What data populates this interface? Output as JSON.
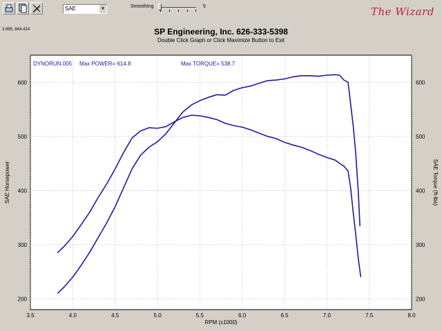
{
  "toolbar": {
    "buttons": [
      "print-icon",
      "copy-icon",
      "tools-icon"
    ],
    "combo_value": "SAE",
    "smoothing_label": "Smoothing",
    "smoothing_value": "5"
  },
  "logo_text": "The Wizard",
  "cursor_readout": "3.965, 644.424",
  "header": {
    "title": "SP Engineering, Inc. 626-333-5398",
    "subtitle": "Double Click Graph or Click Maximize Button to Exit"
  },
  "chart_data": {
    "type": "line",
    "title": "SP Engineering, Inc. 626-333-5398",
    "run_label": "DYNORUN.005",
    "max_power_label": "Max POWER= 614.8",
    "max_torque_label": "Max TORQUE= 538.7",
    "xlabel": "RPM (x1000)",
    "ylabel": "SAE Horsepower",
    "y2label": "SAE Torque (ft-lbs)",
    "xlim": [
      3.5,
      8.0
    ],
    "ylim": [
      180,
      650
    ],
    "x_ticks": [
      "3.5",
      "4.0",
      "4.5",
      "5.0",
      "5.5",
      "6.0",
      "6.5",
      "7.0",
      "7.5",
      "8.0"
    ],
    "y_ticks": [
      "200",
      "300",
      "400",
      "500",
      "600"
    ],
    "y2_ticks": [
      "200",
      "300",
      "400",
      "500",
      "600"
    ],
    "grid": true,
    "color": "#1a1aa0",
    "series": [
      {
        "x": [
          3.82,
          3.9,
          4.0,
          4.1,
          4.2,
          4.3,
          4.4,
          4.5,
          4.6,
          4.7,
          4.8,
          4.9,
          5.0,
          5.1,
          5.2,
          5.3,
          5.4,
          5.5,
          5.6,
          5.7,
          5.8,
          5.9,
          6.0,
          6.1,
          6.2,
          6.3,
          6.4,
          6.5,
          6.6,
          6.7,
          6.8,
          6.9,
          7.0,
          7.1,
          7.15,
          7.2,
          7.25,
          7.28,
          7.31,
          7.34,
          7.37,
          7.39
        ],
        "values": [
          210,
          222,
          240,
          262,
          286,
          313,
          340,
          370,
          405,
          440,
          465,
          480,
          490,
          505,
          525,
          545,
          558,
          566,
          572,
          577,
          576,
          585,
          590,
          593,
          598,
          603,
          604,
          606,
          610,
          612,
          612,
          611,
          613,
          614,
          613,
          604,
          600,
          560,
          520,
          470,
          400,
          334
        ]
      },
      {
        "x": [
          3.82,
          3.9,
          4.0,
          4.1,
          4.2,
          4.3,
          4.4,
          4.5,
          4.6,
          4.7,
          4.8,
          4.9,
          5.0,
          5.1,
          5.2,
          5.3,
          5.4,
          5.5,
          5.6,
          5.7,
          5.8,
          5.9,
          6.0,
          6.1,
          6.2,
          6.3,
          6.4,
          6.5,
          6.6,
          6.7,
          6.8,
          6.9,
          7.0,
          7.1,
          7.15,
          7.2,
          7.25,
          7.28,
          7.31,
          7.34,
          7.37,
          7.4
        ],
        "values": [
          285,
          297,
          315,
          337,
          360,
          387,
          412,
          440,
          470,
          497,
          510,
          516,
          515,
          518,
          527,
          535,
          539,
          538,
          535,
          531,
          524,
          520,
          517,
          512,
          506,
          500,
          496,
          489,
          484,
          480,
          474,
          467,
          461,
          456,
          450,
          445,
          436,
          405,
          360,
          320,
          275,
          240
        ]
      }
    ]
  }
}
